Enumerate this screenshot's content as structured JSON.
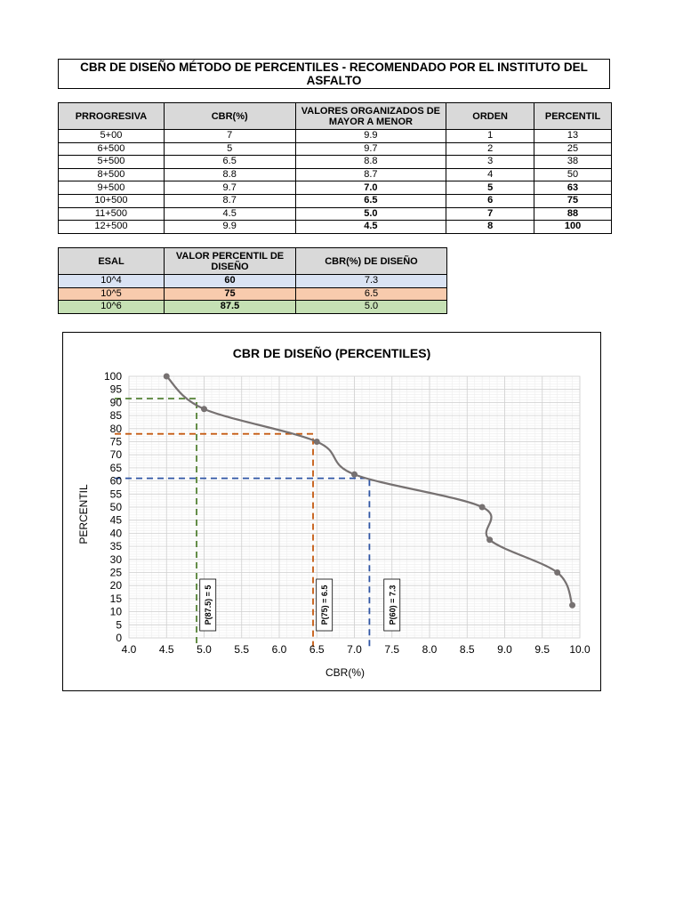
{
  "title": "CBR DE DISEÑO MÉTODO DE PERCENTILES - RECOMENDADO POR EL INSTITUTO DEL ASFALTO",
  "table1": {
    "headers": [
      "PRROGRESIVA",
      "CBR(%)",
      "VALORES ORGANIZADOS DE MAYOR A MENOR",
      "ORDEN",
      "PERCENTIL"
    ],
    "rows": [
      {
        "prog": "5+00",
        "cbr": "7",
        "valor": "9.9",
        "orden": "1",
        "percentil": "13",
        "bold": false
      },
      {
        "prog": "6+500",
        "cbr": "5",
        "valor": "9.7",
        "orden": "2",
        "percentil": "25",
        "bold": false
      },
      {
        "prog": "5+500",
        "cbr": "6.5",
        "valor": "8.8",
        "orden": "3",
        "percentil": "38",
        "bold": false
      },
      {
        "prog": "8+500",
        "cbr": "8.8",
        "valor": "8.7",
        "orden": "4",
        "percentil": "50",
        "bold": false
      },
      {
        "prog": "9+500",
        "cbr": "9.7",
        "valor": "7.0",
        "orden": "5",
        "percentil": "63",
        "bold": true
      },
      {
        "prog": "10+500",
        "cbr": "8.7",
        "valor": "6.5",
        "orden": "6",
        "percentil": "75",
        "bold": true
      },
      {
        "prog": "11+500",
        "cbr": "4.5",
        "valor": "5.0",
        "orden": "7",
        "percentil": "88",
        "bold": true
      },
      {
        "prog": "12+500",
        "cbr": "9.9",
        "valor": "4.5",
        "orden": "8",
        "percentil": "100",
        "bold": true
      }
    ]
  },
  "table2": {
    "headers": [
      "ESAL",
      "VALOR PERCENTIL DE DISEÑO",
      "CBR(%) DE DISEÑO"
    ],
    "rows": [
      {
        "esal": "10^4",
        "percentil": "60",
        "cbr": "7.3",
        "color": "#dae3f3"
      },
      {
        "esal": "10^5",
        "percentil": "75",
        "cbr": "6.5",
        "color": "#f8cbad"
      },
      {
        "esal": "10^6",
        "percentil": "87.5",
        "cbr": "5.0",
        "color": "#c5e0b4"
      }
    ]
  },
  "chart_data": {
    "type": "line",
    "title": "CBR DE DISEÑO (PERCENTILES)",
    "xlabel": "CBR(%)",
    "ylabel": "PERCENTIL",
    "xlim": [
      4.0,
      10.0
    ],
    "ylim": [
      0,
      100
    ],
    "x_ticks": [
      "4.0",
      "4.5",
      "5.0",
      "5.5",
      "6.0",
      "6.5",
      "7.0",
      "7.5",
      "8.0",
      "8.5",
      "9.0",
      "9.5",
      "10.0"
    ],
    "y_ticks": [
      "0",
      "5",
      "10",
      "15",
      "20",
      "25",
      "30",
      "35",
      "40",
      "45",
      "50",
      "55",
      "60",
      "65",
      "70",
      "75",
      "80",
      "85",
      "90",
      "95",
      "100"
    ],
    "grid": true,
    "series": [
      {
        "x": [
          4.5,
          5.0,
          6.5,
          7.0,
          8.7,
          8.8,
          9.7,
          9.9
        ],
        "y": [
          100,
          87.5,
          75,
          62.5,
          50,
          37.5,
          25,
          12.5
        ],
        "color": "#767171"
      }
    ],
    "design_lines": [
      {
        "label": "P(60) = 7.3",
        "x": 7.2,
        "y": 61,
        "color": "#2f55a4"
      },
      {
        "label": "P(75) = 6.5",
        "x": 6.45,
        "y": 78,
        "color": "#c55a11"
      },
      {
        "label": "P(87.5) = 5",
        "x": 4.9,
        "y": 91.5,
        "color": "#548235"
      }
    ]
  }
}
